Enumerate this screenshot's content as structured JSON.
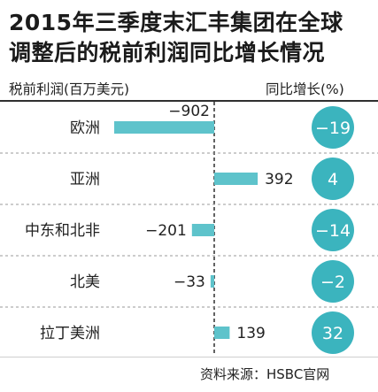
{
  "title_lines": [
    "2015年三季度末汇丰集团在全球",
    "调整后的税前利润同比增长情况"
  ],
  "left_header": "税前利润(百万美元)",
  "right_header": "同比增长(%)",
  "source": "资料来源：HSBC官网",
  "colors": {
    "bar": "#5ec3cb",
    "circle": "#3bb4be",
    "divider": "#2f2f2f"
  },
  "chart_data": {
    "type": "bar",
    "title": "2015年三季度末汇丰集团在全球调整后的税前利润同比增长情况",
    "categories": [
      "欧洲",
      "亚洲",
      "中东和北非",
      "北美",
      "拉丁美洲"
    ],
    "series": [
      {
        "name": "税前利润(百万美元)",
        "values": [
          -902,
          392,
          -201,
          -33,
          139
        ]
      },
      {
        "name": "同比增长(%)",
        "values": [
          -19,
          4,
          -14,
          -2,
          32
        ]
      }
    ],
    "value_labels": [
      "−902",
      "392",
      "−201",
      "−33",
      "139"
    ],
    "growth_labels": [
      "−19",
      "4",
      "−14",
      "−2",
      "32"
    ],
    "orientation": "horizontal",
    "zero_baseline": true
  }
}
